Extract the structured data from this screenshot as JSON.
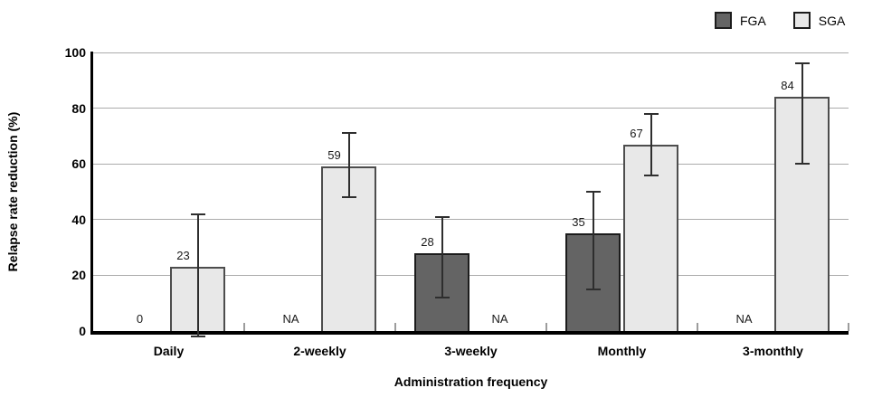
{
  "chart_data": {
    "type": "bar",
    "title": "",
    "xlabel": "Administration frequency",
    "ylabel": "Relapse rate reduction (%)",
    "ylim": [
      0,
      100
    ],
    "yticks": [
      0,
      20,
      40,
      60,
      80,
      100
    ],
    "grid": true,
    "legend_position": "top-right",
    "categories": [
      "Daily",
      "2-weekly",
      "3-weekly",
      "Monthly",
      "3-monthly"
    ],
    "series": [
      {
        "name": "FGA",
        "color": "#646464",
        "border_color": "#1c1c1c",
        "values": [
          0,
          null,
          28,
          35,
          null
        ],
        "bar_labels": [
          "0",
          "NA",
          "28",
          "35",
          "NA"
        ],
        "error_low": [
          null,
          null,
          12,
          15,
          null
        ],
        "error_high": [
          null,
          null,
          41,
          50,
          null
        ]
      },
      {
        "name": "SGA",
        "color": "#e8e8e8",
        "border_color": "#4d4d4d",
        "values": [
          23,
          59,
          null,
          67,
          84
        ],
        "bar_labels": [
          "23",
          "59",
          "NA",
          "67",
          "84"
        ],
        "error_low": [
          -2,
          48,
          null,
          56,
          60
        ],
        "error_high": [
          42,
          71,
          null,
          78,
          96
        ]
      }
    ],
    "colors": {
      "axis": "#000000",
      "gridline": "#ababab",
      "error_bar": "#2e2e2e",
      "boundary_tick": "#9c9c9c"
    }
  }
}
